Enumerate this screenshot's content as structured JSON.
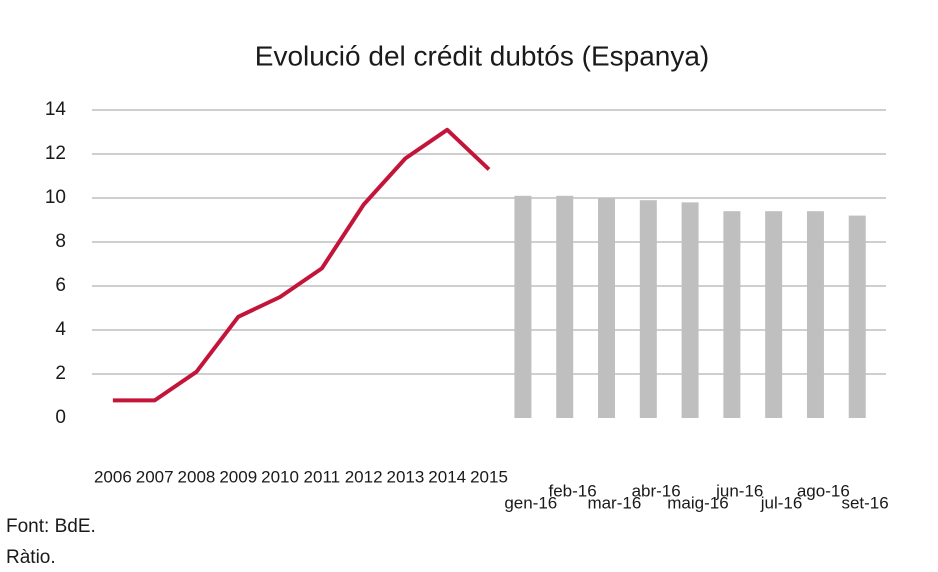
{
  "chart_data": {
    "type": "bar-line",
    "title": "Evolució del crédit dubtós (Espanya)",
    "categories": [
      "2006",
      "2007",
      "2008",
      "2009",
      "2010",
      "2011",
      "2012",
      "2013",
      "2014",
      "2015",
      "gen-16",
      "feb-16",
      "mar-16",
      "abr-16",
      "maig-16",
      "jun-16",
      "jul-16",
      "ago-16",
      "set-16"
    ],
    "series": [
      {
        "kind": "line",
        "color": "#c3153a",
        "values": [
          0.8,
          0.8,
          2.1,
          4.6,
          5.5,
          6.8,
          9.7,
          11.8,
          13.1,
          11.3,
          null,
          null,
          null,
          null,
          null,
          null,
          null,
          null,
          null
        ]
      },
      {
        "kind": "bar",
        "color": "#bfbfbf",
        "values": [
          null,
          null,
          null,
          null,
          null,
          null,
          null,
          null,
          null,
          null,
          10.1,
          10.1,
          10.0,
          9.9,
          9.8,
          9.4,
          9.4,
          9.4,
          9.2
        ]
      }
    ],
    "ylim": [
      0,
      14
    ],
    "yticks": [
      0,
      2,
      4,
      6,
      8,
      10,
      12,
      14
    ],
    "grid": true,
    "notes": [
      "Font: BdE.",
      "Ràtio."
    ]
  }
}
